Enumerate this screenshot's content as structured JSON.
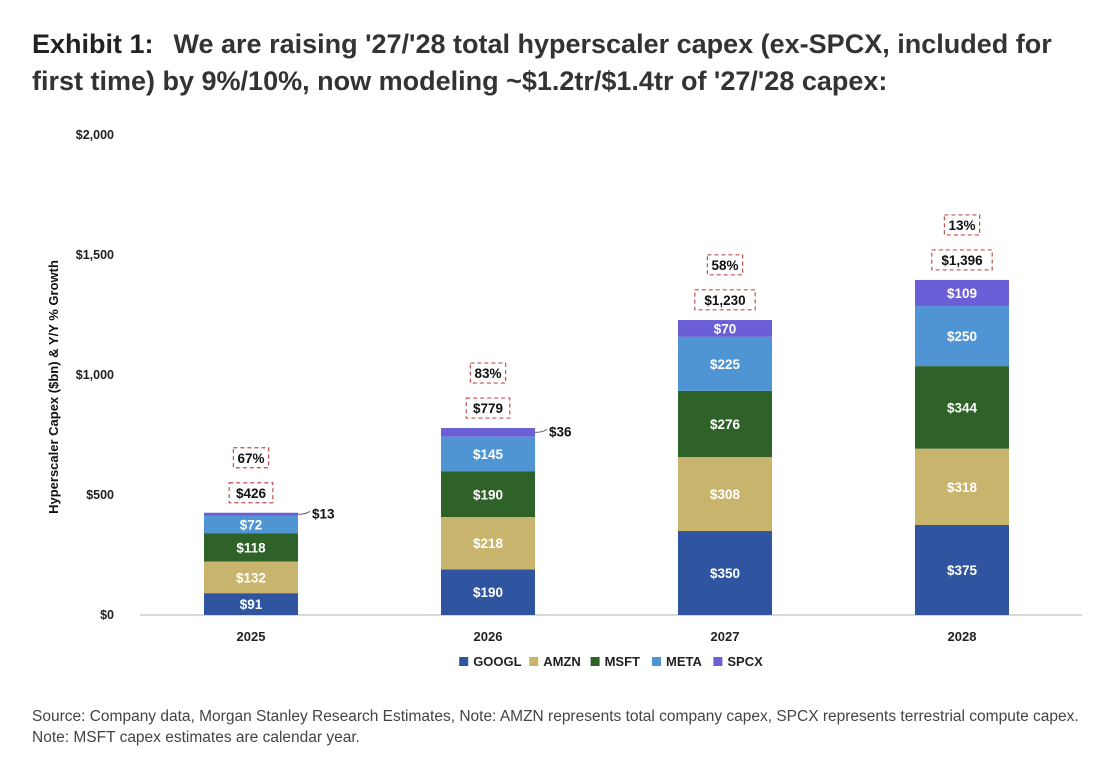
{
  "exhibit": {
    "label": "Exhibit 1:",
    "text": "We are raising '27/'28 total hyperscaler capex (ex-SPCX, included for first time) by 9%/10%, now modeling ~$1.2tr/$1.4tr of '27/'28 capex:"
  },
  "source_note": "Source: Company data, Morgan Stanley Research Estimates, Note: AMZN represents total company capex, SPCX represents terrestrial compute capex. Note: MSFT capex estimates are calendar year.",
  "colors": {
    "GOOGL": "#2f55a0",
    "AMZN": "#c9b46e",
    "MSFT": "#2e6228",
    "META": "#4f95d3",
    "SPCX": "#6a5fd6",
    "axis": "#cccccc",
    "callout_border": "#c0504d"
  },
  "chart_data": {
    "type": "bar",
    "stacked": true,
    "ylabel": "Hyperscaler Capex ($bn) & Y/Y % Growth",
    "xlabel": "",
    "ylim": [
      0,
      2000
    ],
    "yticks": [
      0,
      500,
      1000,
      1500,
      2000
    ],
    "ytick_labels": [
      "$0",
      "$500",
      "$1,000",
      "$1,500",
      "$2,000"
    ],
    "grid": false,
    "legend_position": "bottom",
    "categories": [
      "2025",
      "2026",
      "2027",
      "2028"
    ],
    "series": [
      {
        "name": "GOOGL",
        "values": [
          91,
          190,
          350,
          375
        ],
        "labels": [
          "$91",
          "$190",
          "$350",
          "$375"
        ]
      },
      {
        "name": "AMZN",
        "values": [
          132,
          218,
          308,
          318
        ],
        "labels": [
          "$132",
          "$218",
          "$308",
          "$318"
        ]
      },
      {
        "name": "MSFT",
        "values": [
          118,
          190,
          276,
          344
        ],
        "labels": [
          "$118",
          "$190",
          "$276",
          "$344"
        ]
      },
      {
        "name": "META",
        "values": [
          72,
          145,
          225,
          250
        ],
        "labels": [
          "$72",
          "$145",
          "$225",
          "$250"
        ]
      },
      {
        "name": "SPCX",
        "values": [
          13,
          36,
          70,
          109
        ],
        "labels": [
          "$13",
          "$36",
          "$70",
          "$109"
        ]
      }
    ],
    "totals": [
      426,
      779,
      1230,
      1396
    ],
    "total_labels": [
      "$426",
      "$779",
      "$1,230",
      "$1,396"
    ],
    "growth_labels": [
      "67%",
      "83%",
      "58%",
      "13%"
    ]
  }
}
